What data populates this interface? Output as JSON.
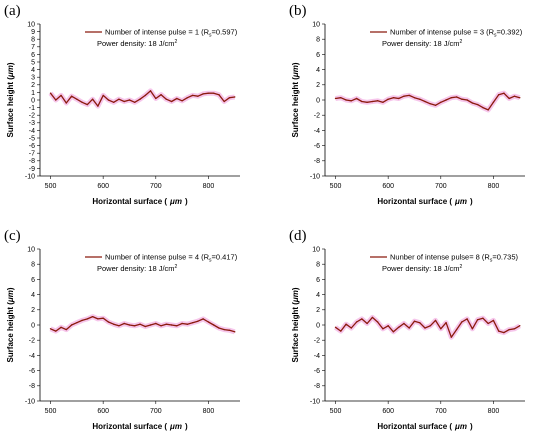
{
  "figure": {
    "panels": [
      {
        "letter": "(a)",
        "legend": "Number of intense pulse = 1 (R",
        "rs": "0.597",
        "density": "Power density: 18 J/cm",
        "density_sup": "2"
      },
      {
        "letter": "(b)",
        "legend": "Number of intense pulse = 3 (R",
        "rs": "0.392",
        "density": "Power density: 18 J/cm",
        "density_sup": "2"
      },
      {
        "letter": "(c)",
        "legend": "Number of intense pulse = 4 (R",
        "rs": "0.417",
        "density": "Power density: 18 J/cm",
        "density_sup": "2"
      },
      {
        "letter": "(d)",
        "legend": "Nunber of intense pulse= 8 (R",
        "rs": "0.735",
        "density": "Power density: 18 J/cm",
        "density_sup": "2"
      }
    ],
    "xlabel": "Horizontal surface (",
    "ylabel": "Surface height (",
    "unit": "μm",
    "line_color": "#8b1a0e",
    "band_color": "#f4b8e6"
  },
  "chart_data": [
    {
      "type": "line",
      "xlabel": "Horizontal surface (μm)",
      "ylabel": "Surface height (μm)",
      "xlim": [
        480,
        860
      ],
      "ylim": [
        -10,
        10
      ],
      "xticks": [
        500,
        600,
        700,
        800
      ],
      "yticks": [
        -10,
        -9,
        -8,
        -7,
        -6,
        -5,
        -4,
        -3,
        -2,
        -1,
        0,
        1,
        2,
        3,
        4,
        5,
        6,
        7,
        8,
        9,
        10
      ],
      "series": [
        {
          "name": "Number of intense pulse = 1 (Rs=0.597)",
          "x": [
            500,
            510,
            520,
            530,
            540,
            550,
            560,
            570,
            580,
            590,
            600,
            610,
            620,
            630,
            640,
            650,
            660,
            670,
            680,
            690,
            700,
            710,
            720,
            730,
            740,
            750,
            760,
            770,
            780,
            790,
            800,
            810,
            820,
            830,
            840,
            850
          ],
          "y": [
            0.9,
            0.0,
            0.6,
            -0.4,
            0.5,
            0.1,
            -0.3,
            -0.6,
            0.1,
            -0.8,
            0.6,
            0.0,
            -0.3,
            0.1,
            -0.2,
            0.0,
            -0.3,
            0.1,
            0.6,
            1.2,
            0.2,
            0.7,
            0.1,
            -0.2,
            0.2,
            -0.1,
            0.3,
            0.6,
            0.5,
            0.8,
            0.9,
            0.9,
            0.7,
            -0.2,
            0.3,
            0.4
          ]
        }
      ]
    },
    {
      "type": "line",
      "xlabel": "Horizontal surface (μm)",
      "ylabel": "Surface height (μm)",
      "xlim": [
        480,
        860
      ],
      "ylim": [
        -10,
        10
      ],
      "xticks": [
        500,
        600,
        700,
        800
      ],
      "yticks": [
        -10,
        -8,
        -6,
        -4,
        -2,
        0,
        2,
        4,
        6,
        8,
        10
      ],
      "series": [
        {
          "name": "Number of intense pulse = 3 (Rs=0.392)",
          "x": [
            500,
            510,
            520,
            530,
            540,
            550,
            560,
            570,
            580,
            590,
            600,
            610,
            620,
            630,
            640,
            650,
            660,
            670,
            680,
            690,
            700,
            710,
            720,
            730,
            740,
            750,
            760,
            770,
            780,
            790,
            800,
            810,
            820,
            830,
            840,
            850
          ],
          "y": [
            0.2,
            0.3,
            0.0,
            -0.1,
            0.2,
            -0.2,
            -0.3,
            -0.2,
            -0.1,
            -0.3,
            0.1,
            0.3,
            0.2,
            0.5,
            0.6,
            0.3,
            0.1,
            -0.2,
            -0.5,
            -0.7,
            -0.3,
            0.0,
            0.3,
            0.4,
            0.1,
            0.0,
            -0.4,
            -0.6,
            -1.0,
            -1.3,
            -0.3,
            0.7,
            0.9,
            0.2,
            0.5,
            0.3
          ]
        }
      ]
    },
    {
      "type": "line",
      "xlabel": "Horizontal surface (μm)",
      "ylabel": "Surface height (μm)",
      "xlim": [
        480,
        860
      ],
      "ylim": [
        -10,
        10
      ],
      "xticks": [
        500,
        600,
        700,
        800
      ],
      "yticks": [
        -10,
        -8,
        -6,
        -4,
        -2,
        0,
        2,
        4,
        6,
        8,
        10
      ],
      "series": [
        {
          "name": "Number of intense pulse = 4 (Rs=0.417)",
          "x": [
            500,
            510,
            520,
            530,
            540,
            550,
            560,
            570,
            580,
            590,
            600,
            610,
            620,
            630,
            640,
            650,
            660,
            670,
            680,
            690,
            700,
            710,
            720,
            730,
            740,
            750,
            760,
            770,
            780,
            790,
            800,
            810,
            820,
            830,
            840,
            850
          ],
          "y": [
            -0.5,
            -0.8,
            -0.3,
            -0.6,
            0.0,
            0.3,
            0.6,
            0.8,
            1.1,
            0.8,
            0.9,
            0.4,
            0.1,
            -0.1,
            0.2,
            0.0,
            -0.1,
            0.1,
            -0.2,
            0.0,
            0.2,
            -0.1,
            0.1,
            0.0,
            -0.1,
            0.2,
            0.1,
            0.3,
            0.5,
            0.8,
            0.4,
            0.0,
            -0.4,
            -0.6,
            -0.7,
            -0.9
          ]
        }
      ]
    },
    {
      "type": "line",
      "xlabel": "Horizontal surface (μm)",
      "ylabel": "Surface height (μm)",
      "xlim": [
        480,
        860
      ],
      "ylim": [
        -10,
        10
      ],
      "xticks": [
        500,
        600,
        700,
        800
      ],
      "yticks": [
        -10,
        -8,
        -6,
        -4,
        -2,
        0,
        2,
        4,
        6,
        8,
        10
      ],
      "series": [
        {
          "name": "Nunber of intense pulse= 8 (Rs=0.735)",
          "x": [
            500,
            510,
            520,
            530,
            540,
            550,
            560,
            570,
            580,
            590,
            600,
            610,
            620,
            630,
            640,
            650,
            660,
            670,
            680,
            690,
            700,
            710,
            720,
            730,
            740,
            750,
            760,
            770,
            780,
            790,
            800,
            810,
            820,
            830,
            840,
            850
          ],
          "y": [
            -0.3,
            -0.8,
            0.1,
            -0.4,
            0.4,
            0.8,
            0.2,
            1.0,
            0.4,
            -0.5,
            -0.1,
            -0.9,
            -0.3,
            0.2,
            -0.4,
            0.5,
            0.3,
            -0.4,
            -0.1,
            0.6,
            -0.5,
            0.3,
            -1.6,
            -0.6,
            0.4,
            0.8,
            -0.5,
            0.7,
            0.9,
            0.2,
            0.6,
            -0.8,
            -1.0,
            -0.6,
            -0.5,
            -0.1
          ]
        }
      ]
    }
  ]
}
